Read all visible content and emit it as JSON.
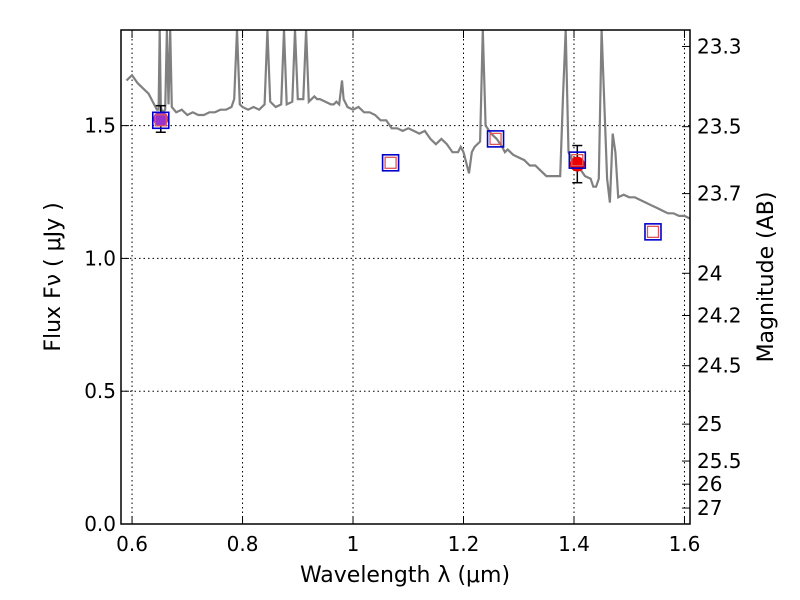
{
  "chart_data": {
    "type": "scatter",
    "xlabel": "Wavelength  λ (μm)",
    "ylabel": "Flux  Fν  ( μJy )",
    "ylabel_right": "Magnitude (AB)",
    "xlim": [
      0.58,
      1.61
    ],
    "ylim": [
      0.0,
      1.86
    ],
    "grid": true,
    "x_ticks": [
      0.6,
      0.8,
      1.0,
      1.2,
      1.4,
      1.6
    ],
    "x_tick_labels": [
      "0.6",
      "0.8",
      "1",
      "1.2",
      "1.4",
      "1.6"
    ],
    "y_ticks": [
      0.0,
      0.5,
      1.0,
      1.5
    ],
    "y_tick_labels": [
      "0.0",
      "0.5",
      "1.0",
      "1.5"
    ],
    "mag_ticks": [
      {
        "label": "23.3",
        "flux": 1.798
      },
      {
        "label": "23.5",
        "flux": 1.496
      },
      {
        "label": "23.7",
        "flux": 1.244
      },
      {
        "label": "24",
        "flux": 0.944
      },
      {
        "label": "24.2",
        "flux": 0.785
      },
      {
        "label": "24.5",
        "flux": 0.596
      },
      {
        "label": "25",
        "flux": 0.376
      },
      {
        "label": "25.5",
        "flux": 0.237
      },
      {
        "label": "26",
        "flux": 0.15
      },
      {
        "label": "27",
        "flux": 0.06
      }
    ],
    "series": [
      {
        "kind": "line",
        "color": "#808080",
        "points": [
          [
            0.59,
            1.67
          ],
          [
            0.6,
            1.69
          ],
          [
            0.61,
            1.66
          ],
          [
            0.62,
            1.64
          ],
          [
            0.63,
            1.62
          ],
          [
            0.635,
            1.6
          ],
          [
            0.64,
            1.58
          ],
          [
            0.645,
            1.56
          ],
          [
            0.648,
            1.56
          ],
          [
            0.65,
            1.86
          ],
          [
            0.652,
            1.57
          ],
          [
            0.655,
            1.55
          ],
          [
            0.66,
            1.56
          ],
          [
            0.663,
            1.86
          ],
          [
            0.666,
            1.58
          ],
          [
            0.669,
            1.86
          ],
          [
            0.672,
            1.57
          ],
          [
            0.68,
            1.55
          ],
          [
            0.69,
            1.56
          ],
          [
            0.7,
            1.54
          ],
          [
            0.71,
            1.55
          ],
          [
            0.72,
            1.54
          ],
          [
            0.73,
            1.54
          ],
          [
            0.74,
            1.55
          ],
          [
            0.75,
            1.55
          ],
          [
            0.76,
            1.56
          ],
          [
            0.77,
            1.56
          ],
          [
            0.78,
            1.57
          ],
          [
            0.785,
            1.6
          ],
          [
            0.79,
            1.86
          ],
          [
            0.795,
            1.58
          ],
          [
            0.8,
            1.57
          ],
          [
            0.81,
            1.56
          ],
          [
            0.82,
            1.57
          ],
          [
            0.83,
            1.56
          ],
          [
            0.84,
            1.58
          ],
          [
            0.845,
            1.86
          ],
          [
            0.85,
            1.59
          ],
          [
            0.86,
            1.57
          ],
          [
            0.87,
            1.58
          ],
          [
            0.875,
            1.86
          ],
          [
            0.88,
            1.58
          ],
          [
            0.89,
            1.59
          ],
          [
            0.895,
            1.86
          ],
          [
            0.9,
            1.6
          ],
          [
            0.91,
            1.6
          ],
          [
            0.915,
            1.86
          ],
          [
            0.92,
            1.59
          ],
          [
            0.93,
            1.61
          ],
          [
            0.935,
            1.6
          ],
          [
            0.94,
            1.6
          ],
          [
            0.95,
            1.59
          ],
          [
            0.96,
            1.58
          ],
          [
            0.965,
            1.58
          ],
          [
            0.97,
            1.59
          ],
          [
            0.975,
            1.58
          ],
          [
            0.98,
            1.67
          ],
          [
            0.983,
            1.6
          ],
          [
            0.99,
            1.57
          ],
          [
            1.0,
            1.56
          ],
          [
            1.01,
            1.57
          ],
          [
            1.02,
            1.55
          ],
          [
            1.03,
            1.55
          ],
          [
            1.04,
            1.54
          ],
          [
            1.05,
            1.52
          ],
          [
            1.06,
            1.52
          ],
          [
            1.07,
            1.49
          ],
          [
            1.08,
            1.49
          ],
          [
            1.09,
            1.48
          ],
          [
            1.1,
            1.49
          ],
          [
            1.11,
            1.48
          ],
          [
            1.12,
            1.47
          ],
          [
            1.13,
            1.48
          ],
          [
            1.14,
            1.45
          ],
          [
            1.15,
            1.43
          ],
          [
            1.16,
            1.45
          ],
          [
            1.17,
            1.43
          ],
          [
            1.18,
            1.4
          ],
          [
            1.19,
            1.4
          ],
          [
            1.195,
            1.42
          ],
          [
            1.2,
            1.4
          ],
          [
            1.21,
            1.32
          ],
          [
            1.215,
            1.4
          ],
          [
            1.22,
            1.42
          ],
          [
            1.23,
            1.44
          ],
          [
            1.235,
            1.86
          ],
          [
            1.24,
            1.5
          ],
          [
            1.25,
            1.47
          ],
          [
            1.26,
            1.45
          ],
          [
            1.27,
            1.42
          ],
          [
            1.275,
            1.4
          ],
          [
            1.28,
            1.41
          ],
          [
            1.29,
            1.39
          ],
          [
            1.3,
            1.38
          ],
          [
            1.31,
            1.37
          ],
          [
            1.32,
            1.35
          ],
          [
            1.33,
            1.35
          ],
          [
            1.34,
            1.33
          ],
          [
            1.35,
            1.31
          ],
          [
            1.36,
            1.31
          ],
          [
            1.37,
            1.31
          ],
          [
            1.375,
            1.31
          ],
          [
            1.38,
            1.6
          ],
          [
            1.385,
            1.86
          ],
          [
            1.39,
            1.4
          ],
          [
            1.4,
            1.35
          ],
          [
            1.41,
            1.34
          ],
          [
            1.42,
            1.31
          ],
          [
            1.43,
            1.3
          ],
          [
            1.435,
            1.27
          ],
          [
            1.44,
            1.27
          ],
          [
            1.445,
            1.3
          ],
          [
            1.45,
            1.86
          ],
          [
            1.46,
            1.3
          ],
          [
            1.465,
            1.21
          ],
          [
            1.47,
            1.47
          ],
          [
            1.475,
            1.4
          ],
          [
            1.48,
            1.23
          ],
          [
            1.49,
            1.24
          ],
          [
            1.5,
            1.23
          ],
          [
            1.51,
            1.23
          ],
          [
            1.52,
            1.22
          ],
          [
            1.53,
            1.21
          ],
          [
            1.54,
            1.2
          ],
          [
            1.55,
            1.19
          ],
          [
            1.56,
            1.18
          ],
          [
            1.57,
            1.17
          ],
          [
            1.58,
            1.17
          ],
          [
            1.59,
            1.16
          ],
          [
            1.6,
            1.16
          ],
          [
            1.61,
            1.15
          ]
        ]
      },
      {
        "kind": "model-blue-squares",
        "color": "#0000cc",
        "points": [
          [
            0.652,
            1.52
          ],
          [
            1.068,
            1.36
          ],
          [
            1.258,
            1.45
          ],
          [
            1.406,
            1.37
          ],
          [
            1.543,
            1.1
          ]
        ]
      },
      {
        "kind": "model-red-squares",
        "color": "#dd5555",
        "points": [
          [
            0.652,
            1.52
          ],
          [
            1.068,
            1.36
          ],
          [
            1.258,
            1.45
          ],
          [
            1.406,
            1.37
          ],
          [
            1.543,
            1.1
          ]
        ]
      },
      {
        "kind": "observed-points",
        "points": [
          {
            "x": 0.652,
            "y": 1.525,
            "err": 0.05,
            "color": "#9933cc"
          },
          {
            "x": 1.406,
            "y": 1.355,
            "err": 0.07,
            "color": "#ee0000"
          }
        ]
      }
    ]
  }
}
